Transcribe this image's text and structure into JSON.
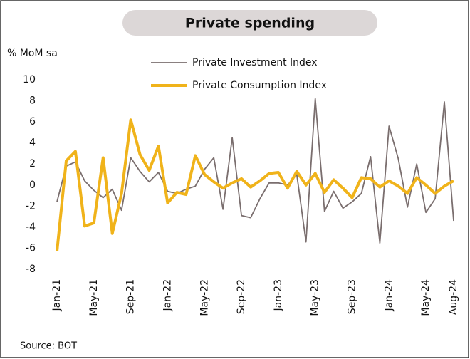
{
  "chart_data": {
    "type": "line",
    "title": "Private spending",
    "y_label": "% MoM sa",
    "source": "Source: BOT",
    "categories": [
      "Jan-21",
      null,
      null,
      null,
      "May-21",
      null,
      null,
      null,
      "Sep-21",
      null,
      null,
      null,
      "Jan-22",
      null,
      null,
      null,
      "May-22",
      null,
      null,
      null,
      "Sep-22",
      null,
      null,
      null,
      "Jan-23",
      null,
      null,
      null,
      "May-23",
      null,
      null,
      null,
      "Sep-23",
      null,
      null,
      null,
      "Jan-24",
      null,
      null,
      null,
      "May-24",
      null,
      null,
      "Aug-24"
    ],
    "series": [
      {
        "name": "Private Investment Index",
        "color": "#7a6e6e",
        "values": [
          -1.6,
          1.8,
          2.2,
          0.4,
          -0.5,
          -1.2,
          -0.4,
          -2.4,
          2.6,
          1.3,
          0.3,
          1.2,
          -0.6,
          -0.8,
          -0.4,
          -0.1,
          1.5,
          2.6,
          -2.3,
          4.5,
          -2.9,
          -3.1,
          -1.3,
          0.2,
          0.2,
          0.0,
          1.0,
          -5.4,
          8.2,
          -2.5,
          -0.6,
          -2.2,
          -1.6,
          -0.8,
          2.7,
          -5.5,
          5.6,
          2.5,
          -2.1,
          2.0,
          -2.6,
          -1.3,
          7.9,
          -3.4
        ]
      },
      {
        "name": "Private Consumption Index",
        "color": "#f0b31a",
        "values": [
          -6.3,
          2.3,
          3.2,
          -3.9,
          -3.6,
          2.6,
          -4.6,
          -0.8,
          6.2,
          2.9,
          1.4,
          3.7,
          -1.7,
          -0.7,
          -0.9,
          2.8,
          1.0,
          0.3,
          -0.3,
          0.2,
          0.6,
          -0.2,
          0.4,
          1.1,
          1.2,
          -0.3,
          1.3,
          0.0,
          1.1,
          -0.7,
          0.5,
          -0.3,
          -1.2,
          0.7,
          0.6,
          -0.2,
          0.4,
          -0.1,
          -0.8,
          0.7,
          0.0,
          -0.8,
          -0.1,
          0.4
        ]
      }
    ],
    "ylim": [
      -8,
      10
    ],
    "yticks": [
      -8,
      -6,
      -4,
      -2,
      0,
      2,
      4,
      6,
      8,
      10
    ],
    "grid": false
  }
}
